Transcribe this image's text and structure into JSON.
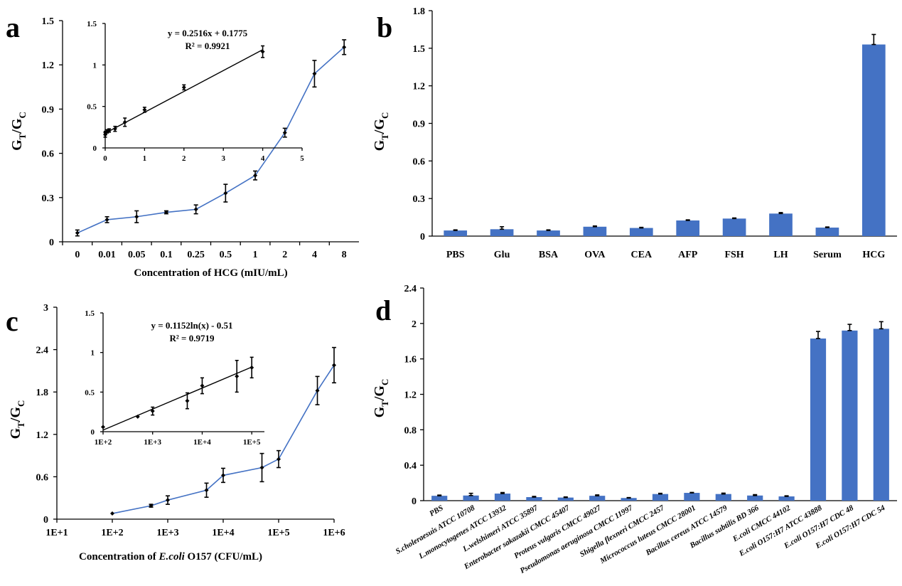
{
  "colors": {
    "bar": "#4472C4",
    "line": "#4472C4",
    "fit": "#000000",
    "axis": "#000000"
  },
  "panels": {
    "a": "a",
    "b": "b",
    "c": "c",
    "d": "d"
  },
  "chart_data": [
    {
      "panel": "a",
      "type": "line",
      "categories": [
        "0",
        "0.01",
        "0.05",
        "0.1",
        "0.25",
        "0.5",
        "1",
        "2",
        "4",
        "8"
      ],
      "values": [
        0.06,
        0.15,
        0.17,
        0.2,
        0.22,
        0.33,
        0.45,
        0.74,
        1.14,
        1.32
      ],
      "errors": [
        0.02,
        0.02,
        0.04,
        0.01,
        0.03,
        0.06,
        0.03,
        0.03,
        0.09,
        0.05
      ],
      "xlabel": "Concentration of HCG (mIU/mL)",
      "ylabel": {
        "main": "G",
        "sub1": "T",
        "mid": "/G",
        "sub2": "C"
      },
      "ylim": [
        0,
        1.5
      ],
      "yticks": [
        "0",
        "0.3",
        "0.6",
        "0.9",
        "1.2",
        "1.5"
      ],
      "inset": {
        "type": "scatter",
        "x": [
          0,
          0.01,
          0.05,
          0.1,
          0.25,
          0.5,
          1,
          2,
          4
        ],
        "y": [
          0.16,
          0.18,
          0.2,
          0.21,
          0.23,
          0.31,
          0.46,
          0.73,
          1.16
        ],
        "errors": [
          0.03,
          0.02,
          0.02,
          0.02,
          0.03,
          0.05,
          0.03,
          0.03,
          0.07
        ],
        "xlim": [
          0,
          5
        ],
        "ylim": [
          0,
          1.5
        ],
        "xticks": [
          "0",
          "1",
          "2",
          "3",
          "4",
          "5"
        ],
        "yticks": [
          "0",
          "0.5",
          "1",
          "1.5"
        ],
        "fit": {
          "slope": 0.2516,
          "intercept": 0.1775,
          "x_range": [
            0,
            4
          ]
        },
        "equation": "y = 0.2516x + 0.1775",
        "r2": "R² = 0.9921"
      }
    },
    {
      "panel": "b",
      "type": "bar",
      "categories": [
        "PBS",
        "Glu",
        "BSA",
        "OVA",
        "CEA",
        "AFP",
        "FSH",
        "LH",
        "Serum",
        "HCG"
      ],
      "values": [
        0.045,
        0.055,
        0.045,
        0.075,
        0.065,
        0.125,
        0.14,
        0.18,
        0.068,
        1.53
      ],
      "errors": [
        0.005,
        0.02,
        0.005,
        0.006,
        0.005,
        0.005,
        0.005,
        0.008,
        0.005,
        0.08
      ],
      "ylabel": {
        "main": "G",
        "sub1": "T",
        "mid": "/G",
        "sub2": "C"
      },
      "ylim": [
        0,
        1.8
      ],
      "yticks": [
        "0",
        "0.3",
        "0.6",
        "0.9",
        "1.2",
        "1.5",
        "1.8"
      ]
    },
    {
      "panel": "c",
      "type": "line",
      "xscale": "log",
      "x": [
        100,
        500,
        1000,
        5000,
        10000,
        50000,
        100000,
        500000,
        1000000
      ],
      "values": [
        0.08,
        0.19,
        0.27,
        0.41,
        0.62,
        0.73,
        0.85,
        1.82,
        2.18
      ],
      "errors": [
        0.01,
        0.02,
        0.06,
        0.1,
        0.1,
        0.2,
        0.12,
        0.2,
        0.25
      ],
      "xlim": [
        10,
        1000000
      ],
      "xticks": [
        "1E+1",
        "1E+2",
        "1E+3",
        "1E+4",
        "1E+5",
        "1E+6"
      ],
      "xlabel_parts": [
        "Concentration of ",
        "E.coli",
        " O157 (CFU/mL)"
      ],
      "ylabel": {
        "main": "G",
        "sub1": "T",
        "mid": "/G",
        "sub2": "C"
      },
      "ylim": [
        0,
        3
      ],
      "yticks": [
        "0",
        "0.6",
        "1.2",
        "1.8",
        "2.4",
        "3"
      ],
      "inset": {
        "type": "scatter",
        "xscale": "log",
        "x": [
          100,
          500,
          1000,
          5000,
          10000,
          50000,
          100000
        ],
        "y": [
          0.06,
          0.19,
          0.26,
          0.39,
          0.58,
          0.7,
          0.81
        ],
        "errors": [
          0.02,
          0.02,
          0.05,
          0.1,
          0.1,
          0.2,
          0.13
        ],
        "xlim": [
          100,
          180000
        ],
        "ylim": [
          0,
          1.5
        ],
        "xticks": [
          "1E+2",
          "1E+3",
          "1E+4",
          "1E+5"
        ],
        "yticks": [
          "0",
          "0.5",
          "1",
          "1.5"
        ],
        "fit": {
          "a": 0.1152,
          "b": -0.51,
          "x_range": [
            100,
            100000
          ]
        },
        "equation": "y = 0.1152ln(x) - 0.51",
        "r2": "R² = 0.9719"
      }
    },
    {
      "panel": "d",
      "type": "bar",
      "categories": [
        {
          "italic": "",
          "rest": "PBS"
        },
        {
          "italic": "S.choleraesuis",
          "rest": " ATCC 10708"
        },
        {
          "italic": "L.monocytogenes",
          "rest": " ATCC 13932"
        },
        {
          "italic": "L.welshimeri",
          "rest": "  ATCC 35897"
        },
        {
          "italic": "Enterobacter sakazakii",
          "rest": " CMCC 45407"
        },
        {
          "italic": "Proteus vulgaris",
          "rest": " CMCC 49027"
        },
        {
          "italic": "Pseudomonas aeruginosa",
          "rest": " CMCC 11997"
        },
        {
          "italic": "Shigella flexneri",
          "rest": "  CMCC 2457"
        },
        {
          "italic": "Micrococcus luteus",
          "rest": " CMCC 28001"
        },
        {
          "italic": "Bacillus cereus",
          "rest": " ATCC 14579"
        },
        {
          "italic": "Bacillus subtilis",
          "rest": " BD 366"
        },
        {
          "italic": "E.coli",
          "rest": " CMCC  44102"
        },
        {
          "italic": "E.coli",
          "rest": " O157:H7 ATCC 43888"
        },
        {
          "italic": "E.coli",
          "rest": " O157:H7 CDC 48"
        },
        {
          "italic": "E.coli",
          "rest": " O157:H7 CDC 54"
        }
      ],
      "values": [
        0.055,
        0.058,
        0.08,
        0.04,
        0.035,
        0.055,
        0.03,
        0.075,
        0.088,
        0.075,
        0.058,
        0.048,
        1.83,
        1.92,
        1.94
      ],
      "errors": [
        0.008,
        0.025,
        0.012,
        0.008,
        0.007,
        0.01,
        0.005,
        0.008,
        0.005,
        0.01,
        0.01,
        0.007,
        0.08,
        0.07,
        0.08
      ],
      "ylabel": {
        "main": "G",
        "sub1": "T",
        "mid": "/G",
        "sub2": "C"
      },
      "ylim": [
        0,
        2.4
      ],
      "yticks": [
        "0",
        "0.4",
        "0.8",
        "1.2",
        "1.6",
        "2",
        "2.4"
      ]
    }
  ]
}
